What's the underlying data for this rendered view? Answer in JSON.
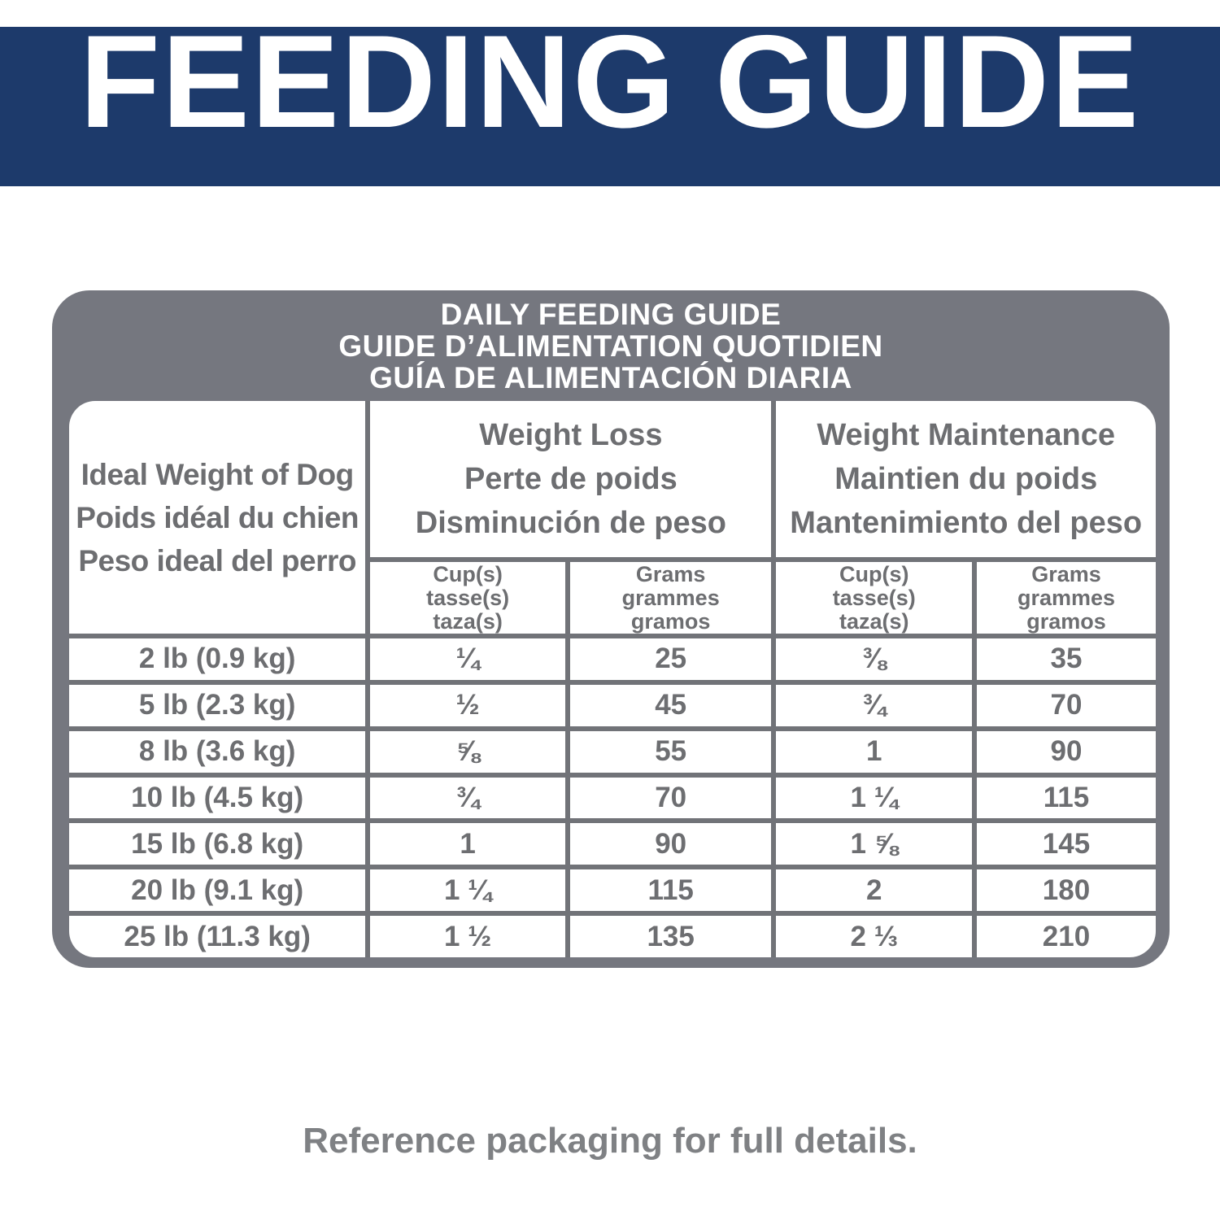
{
  "banner": {
    "title": "FEEDING GUIDE"
  },
  "panel": {
    "title": "DAILY FEEDING GUIDE\nGUIDE D’ALIMENTATION QUOTIDIEN\nGUÍA DE ALIMENTACIÓN DIARIA"
  },
  "table": {
    "row_header": "Ideal Weight of Dog\nPoids idéal du chien\nPeso ideal del perro",
    "group_weight_loss": "Weight Loss\nPerte de poids\nDisminución de peso",
    "group_weight_maintenance": "Weight Maintenance\nMaintien du poids\nMantenimiento del peso",
    "subheader_cups": "Cup(s)\ntasse(s)\ntaza(s)",
    "subheader_grams": "Grams\ngrammes\ngramos",
    "rows": [
      {
        "weight": "2 lb (0.9 kg)",
        "loss_cups": "¼",
        "loss_grams": "25",
        "maint_cups": "⅜",
        "maint_grams": "35"
      },
      {
        "weight": "5 lb (2.3 kg)",
        "loss_cups": "½",
        "loss_grams": "45",
        "maint_cups": "¾",
        "maint_grams": "70"
      },
      {
        "weight": "8 lb (3.6 kg)",
        "loss_cups": "⅝",
        "loss_grams": "55",
        "maint_cups": "1",
        "maint_grams": "90"
      },
      {
        "weight": "10 lb (4.5 kg)",
        "loss_cups": "¾",
        "loss_grams": "70",
        "maint_cups": "1 ¼",
        "maint_grams": "115"
      },
      {
        "weight": "15 lb (6.8 kg)",
        "loss_cups": "1",
        "loss_grams": "90",
        "maint_cups": "1 ⅝",
        "maint_grams": "145"
      },
      {
        "weight": "20 lb (9.1 kg)",
        "loss_cups": "1 ¼",
        "loss_grams": "115",
        "maint_cups": "2",
        "maint_grams": "180"
      },
      {
        "weight": "25 lb (11.3 kg)",
        "loss_cups": "1 ½",
        "loss_grams": "135",
        "maint_cups": "2 ⅓",
        "maint_grams": "210"
      }
    ]
  },
  "footer": {
    "note": "Reference packaging for full details."
  },
  "colors": {
    "banner_navy": "#1d3a6b",
    "panel_gray": "#75777f",
    "grid_line_gray": "#717378",
    "table_text_gray": "#6d6e71",
    "note_gray": "#7f8184"
  }
}
